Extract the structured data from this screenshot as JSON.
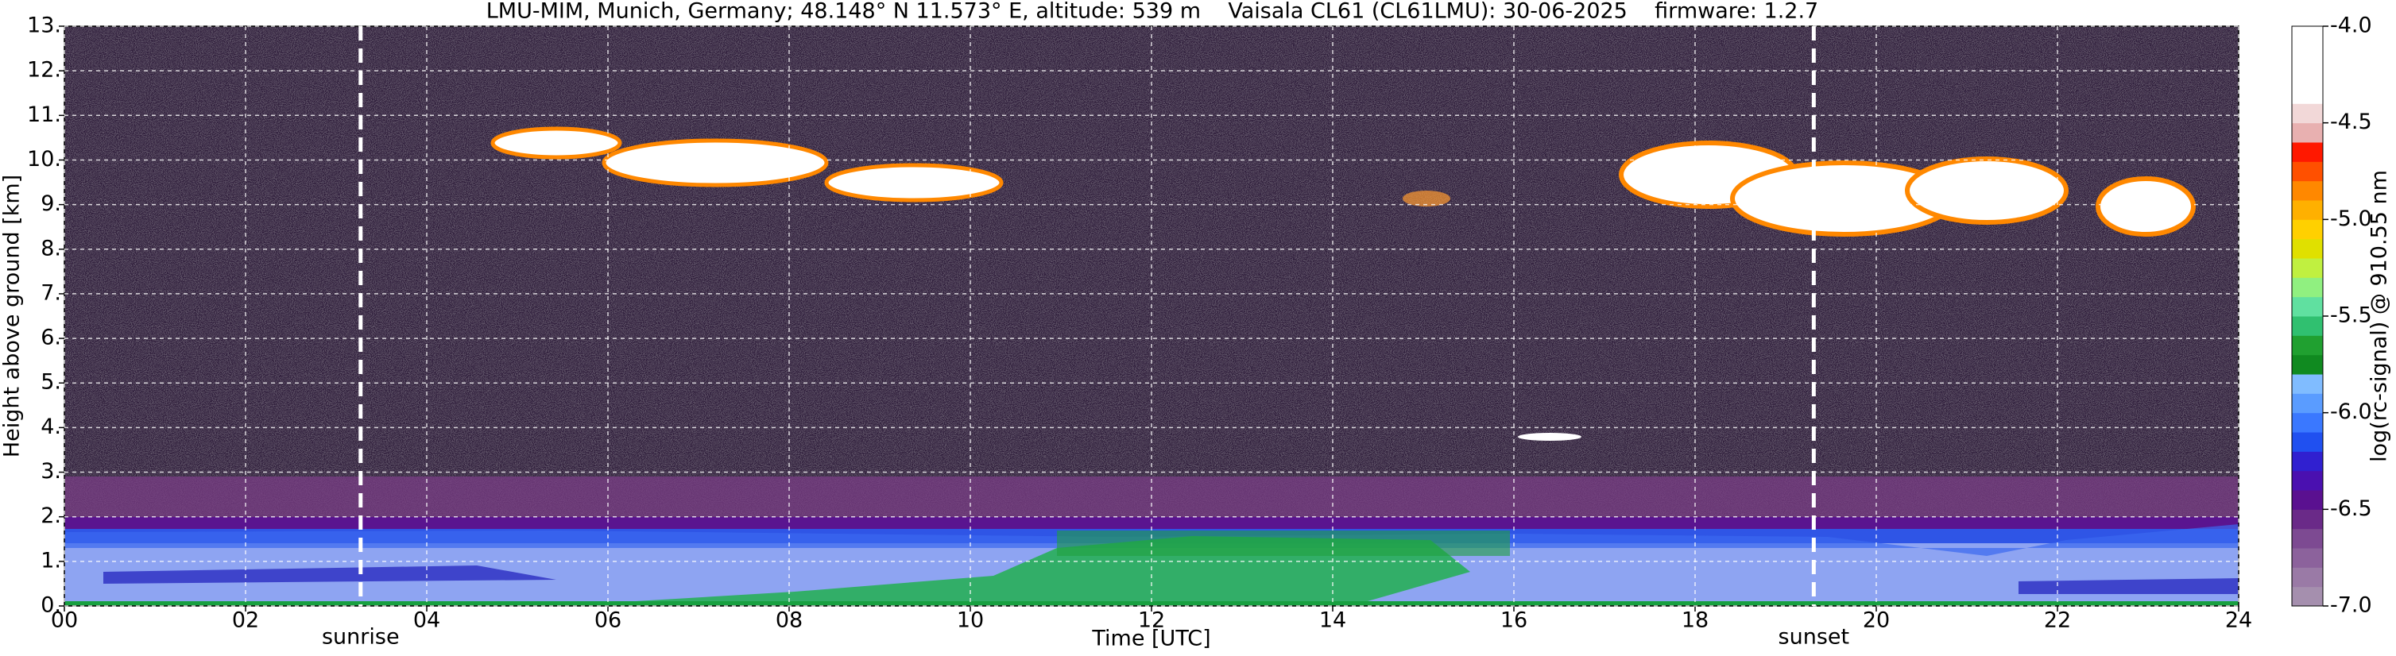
{
  "chart_data": {
    "type": "heatmap",
    "title": "LMU-MIM, Munich, Germany; 48.148° N 11.573° E, altitude: 539 m    Vaisala CL61 (CL61LMU): 30-06-2025    firmware: 1.2.7",
    "x_label": "Time [UTC]",
    "y_label": "Height above ground [km]",
    "colorbar_label": "log(rc-signal) @ 910.55 nm",
    "xlim": [
      0,
      24
    ],
    "ylim": [
      0,
      13
    ],
    "clim": [
      -7,
      -4
    ],
    "xticks": [
      {
        "value": 0,
        "label": "00"
      },
      {
        "value": 2,
        "label": "02"
      },
      {
        "value": 4,
        "label": "04"
      },
      {
        "value": 6,
        "label": "06"
      },
      {
        "value": 8,
        "label": "08"
      },
      {
        "value": 10,
        "label": "10"
      },
      {
        "value": 12,
        "label": "12"
      },
      {
        "value": 14,
        "label": "14"
      },
      {
        "value": 16,
        "label": "16"
      },
      {
        "value": 18,
        "label": "18"
      },
      {
        "value": 20,
        "label": "20"
      },
      {
        "value": 22,
        "label": "22"
      },
      {
        "value": 24,
        "label": "24"
      }
    ],
    "yticks": [
      {
        "value": 0,
        "label": "0."
      },
      {
        "value": 1,
        "label": "1."
      },
      {
        "value": 2,
        "label": "2."
      },
      {
        "value": 3,
        "label": "3."
      },
      {
        "value": 4,
        "label": "4."
      },
      {
        "value": 5,
        "label": "5."
      },
      {
        "value": 6,
        "label": "6."
      },
      {
        "value": 7,
        "label": "7."
      },
      {
        "value": 8,
        "label": "8."
      },
      {
        "value": 9,
        "label": "9."
      },
      {
        "value": 10,
        "label": "10."
      },
      {
        "value": 11,
        "label": "11."
      },
      {
        "value": 12,
        "label": "12."
      },
      {
        "value": 13,
        "label": "13."
      }
    ],
    "cticks": [
      {
        "value": -4,
        "label": "-4.0"
      },
      {
        "value": -4.5,
        "label": "-4.5"
      },
      {
        "value": -5,
        "label": "-5.0"
      },
      {
        "value": -5.5,
        "label": "-5.5"
      },
      {
        "value": -6,
        "label": "-6.0"
      },
      {
        "value": -6.5,
        "label": "-6.5"
      },
      {
        "value": -7,
        "label": "-7.0"
      }
    ],
    "colorbar_colors": [
      "#a58fae",
      "#9a7aa6",
      "#8c629c",
      "#7d4a92",
      "#6a2a88",
      "#5a1090",
      "#4a10b0",
      "#3020d0",
      "#2050f0",
      "#3a78ff",
      "#5a9cff",
      "#80bcff",
      "#108a20",
      "#20a030",
      "#30c070",
      "#60e0a0",
      "#90f080",
      "#c0f040",
      "#e0e000",
      "#ffd000",
      "#ffb000",
      "#ff8800",
      "#ff5000",
      "#ff1800",
      "#e8b0b0",
      "#f2d8d8",
      "#ffffff",
      "#ffffff",
      "#ffffff",
      "#ffffff"
    ],
    "vlines": [
      {
        "x": 3.27,
        "label": "sunrise"
      },
      {
        "x": 19.31,
        "label": "sunset"
      }
    ],
    "grid": true
  }
}
